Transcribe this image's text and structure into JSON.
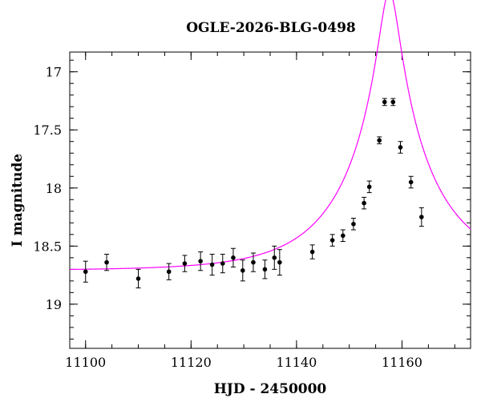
{
  "chart_data": {
    "type": "scatter",
    "title": "OGLE-2026-BLG-0498",
    "xlabel": "HJD - 2450000",
    "ylabel": "I magnitude",
    "xlim": [
      11097,
      11173
    ],
    "ylim": [
      19.38,
      16.83
    ],
    "y_inverted": true,
    "grid": false,
    "legend": "none",
    "x_ticks": [
      11100,
      11120,
      11140,
      11160
    ],
    "x_tick_labels": [
      "11100",
      "11120",
      "11140",
      "11160"
    ],
    "y_ticks": [
      17,
      17.5,
      18,
      18.5,
      19
    ],
    "y_tick_labels": [
      "17",
      "17.5",
      "18",
      "18.5",
      "19"
    ],
    "x_minor_step": 5,
    "y_minor_step": 0.1,
    "colors": {
      "points": "#000000",
      "model": "#ff00ff",
      "axes": "#000000"
    },
    "series": [
      {
        "kind": "points_with_errorbars",
        "x": [
          11100.0,
          11104.0,
          11110.0,
          11115.8,
          11118.8,
          11121.8,
          11124.0,
          11126.0,
          11128.0,
          11129.8,
          11131.8,
          11134.0,
          11135.8,
          11136.8,
          11143.0,
          11146.8,
          11148.8,
          11150.8,
          11152.8,
          11153.8,
          11155.7,
          11156.7,
          11158.3,
          11159.7,
          11161.7,
          11163.7
        ],
        "y": [
          18.72,
          18.64,
          18.78,
          18.72,
          18.65,
          18.63,
          18.66,
          18.65,
          18.6,
          18.71,
          18.64,
          18.7,
          18.6,
          18.64,
          18.55,
          18.45,
          18.41,
          18.31,
          18.13,
          17.99,
          17.59,
          17.26,
          17.26,
          17.65,
          17.95,
          18.25
        ],
        "yerr": [
          0.09,
          0.07,
          0.08,
          0.07,
          0.07,
          0.08,
          0.09,
          0.08,
          0.08,
          0.09,
          0.08,
          0.08,
          0.1,
          0.11,
          0.06,
          0.05,
          0.05,
          0.05,
          0.05,
          0.05,
          0.03,
          0.03,
          0.03,
          0.05,
          0.05,
          0.08
        ]
      },
      {
        "kind": "model_curve",
        "model": "point-lens",
        "t0": 11157.6,
        "u0": 0.11,
        "tE": 16.5,
        "baseline_mag": 18.71
      }
    ]
  }
}
